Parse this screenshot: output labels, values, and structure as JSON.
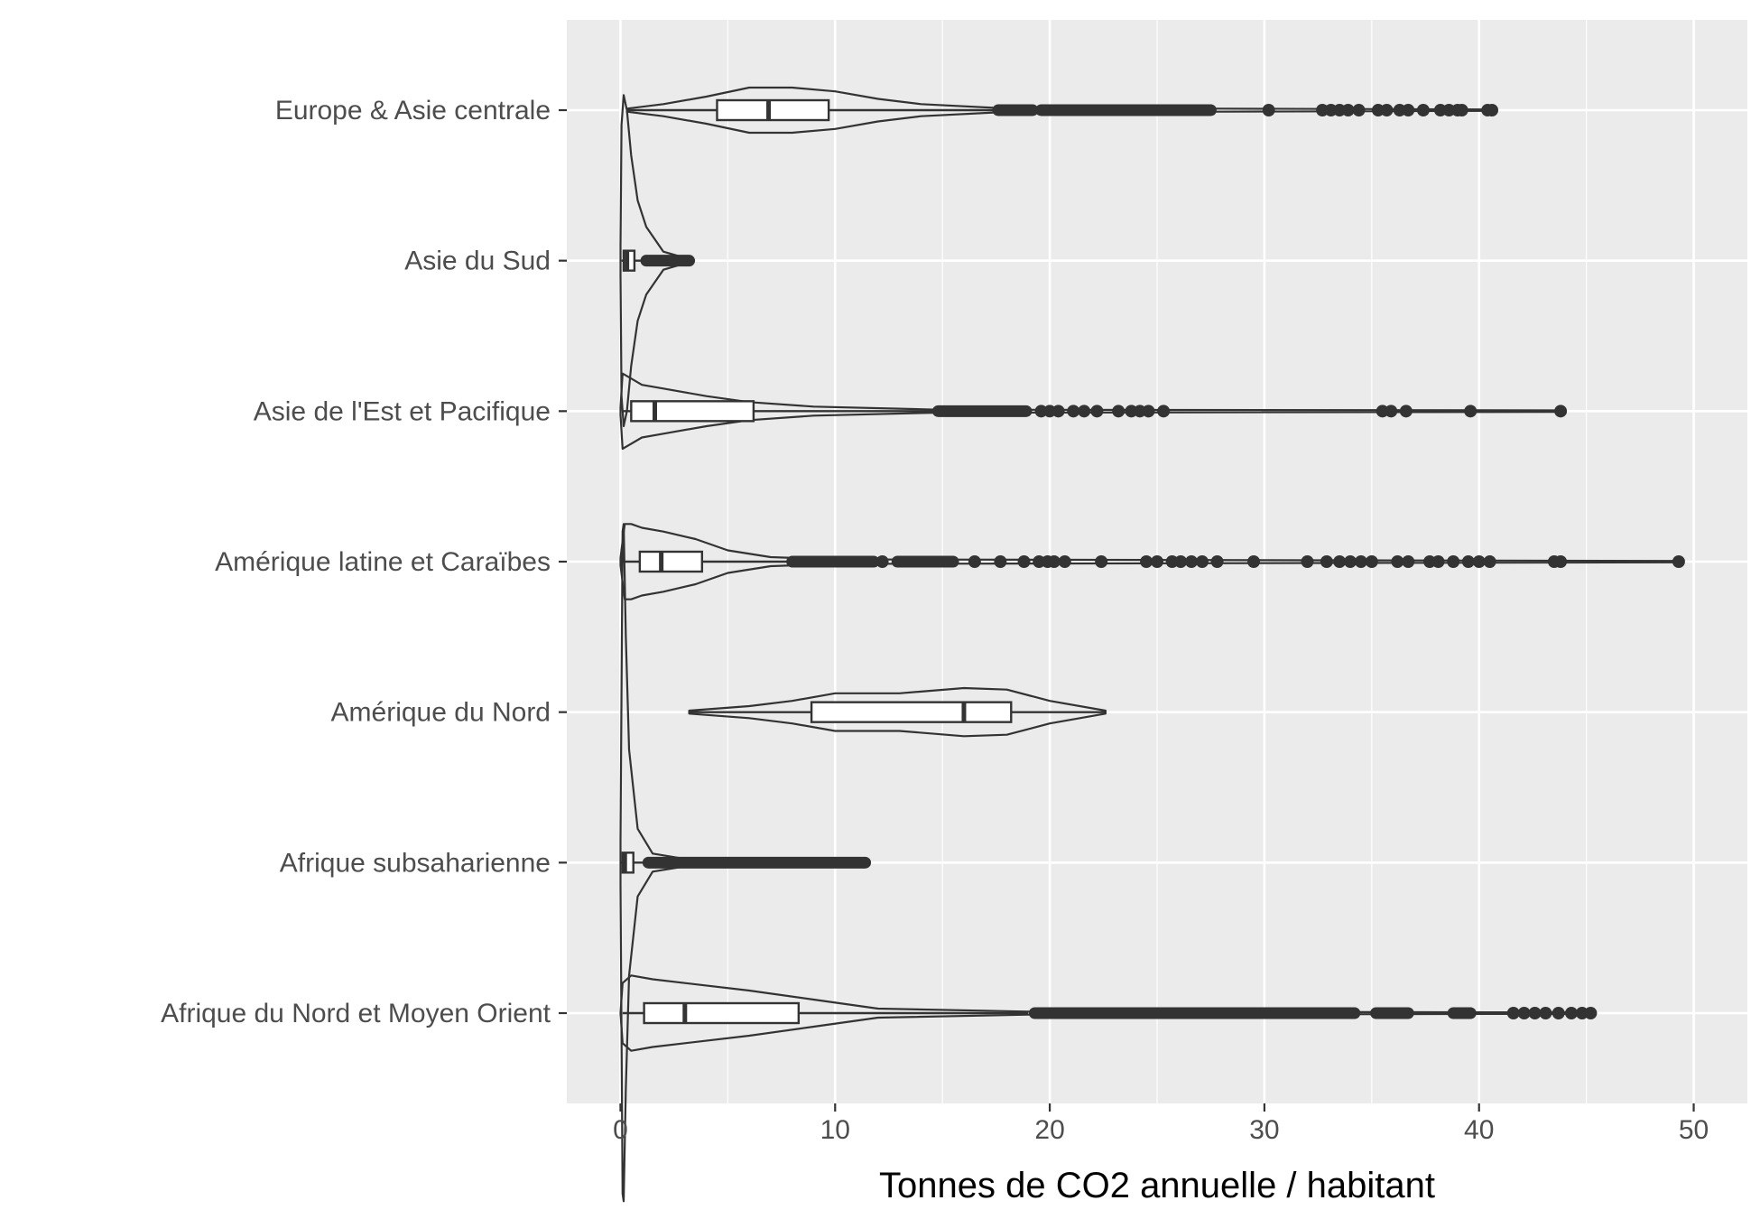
{
  "chart_data": {
    "type": "violin+boxplot",
    "xlabel": "Tonnes de CO2 annuelle / habitant",
    "ylabel": "",
    "xlim": [
      -2.5,
      52.5
    ],
    "xticks": [
      0,
      10,
      20,
      30,
      40,
      50
    ],
    "xtick_labels": [
      "0",
      "10",
      "20",
      "30",
      "40",
      "50"
    ],
    "grid": true,
    "colors": {
      "panel": "#ebebeb",
      "grid": "#ffffff",
      "ink": "#333333",
      "box_fill": "#ffffff"
    },
    "categories": [
      "Afrique du Nord et Moyen Orient",
      "Afrique subsaharienne",
      "Amérique du Nord",
      "Amérique latine et Caraïbes",
      "Asie de l'Est et Pacifique",
      "Asie du Sud",
      "Europe & Asie centrale"
    ],
    "series": [
      {
        "category": "Afrique du Nord et Moyen Orient",
        "min": 0.1,
        "q1": 1.1,
        "median": 3.0,
        "q3": 8.3,
        "whisker_high": 19.0,
        "max": 45.2,
        "violin": [
          [
            0.0,
            0.0
          ],
          [
            0.1,
            0.4
          ],
          [
            0.5,
            0.5
          ],
          [
            1.5,
            0.45
          ],
          [
            3.0,
            0.4
          ],
          [
            6.0,
            0.3
          ],
          [
            9.0,
            0.18
          ],
          [
            12.0,
            0.06
          ],
          [
            19.0,
            0.02
          ],
          [
            45.2,
            0.01
          ]
        ],
        "outlier_ranges": [
          [
            19.3,
            34.2
          ],
          [
            35.2,
            36.7
          ],
          [
            38.8,
            39.6
          ]
        ],
        "outliers": [
          41.6,
          42.1,
          42.6,
          43.1,
          43.7,
          44.3,
          44.8,
          45.2
        ]
      },
      {
        "category": "Afrique subsaharienne",
        "min": 0.0,
        "q1": 0.1,
        "median": 0.2,
        "q3": 0.6,
        "whisker_high": 1.3,
        "max": 11.4,
        "violin": [
          [
            0.0,
            0.3
          ],
          [
            0.1,
            4.4
          ],
          [
            0.15,
            4.5
          ],
          [
            0.25,
            3.0
          ],
          [
            0.4,
            1.5
          ],
          [
            0.8,
            0.45
          ],
          [
            1.5,
            0.12
          ],
          [
            3.0,
            0.05
          ],
          [
            11.4,
            0.02
          ]
        ],
        "outlier_ranges": [
          [
            1.3,
            11.4
          ]
        ],
        "outliers": []
      },
      {
        "category": "Amérique du Nord",
        "min": 3.2,
        "q1": 8.9,
        "median": 16.0,
        "q3": 18.2,
        "whisker_high": 22.6,
        "max": 22.6,
        "violin": [
          [
            3.2,
            0.02
          ],
          [
            6.0,
            0.08
          ],
          [
            8.0,
            0.15
          ],
          [
            10.0,
            0.25
          ],
          [
            13.0,
            0.25
          ],
          [
            16.0,
            0.32
          ],
          [
            18.0,
            0.3
          ],
          [
            20.0,
            0.15
          ],
          [
            22.6,
            0.02
          ]
        ],
        "outlier_ranges": [],
        "outliers": []
      },
      {
        "category": "Amérique latine et Caraïbes",
        "min": 0.1,
        "q1": 0.9,
        "median": 1.9,
        "q3": 3.8,
        "whisker_high": 8.0,
        "max": 49.3,
        "violin": [
          [
            0.0,
            0.05
          ],
          [
            0.2,
            0.5
          ],
          [
            0.5,
            0.5
          ],
          [
            1.0,
            0.45
          ],
          [
            2.0,
            0.4
          ],
          [
            3.5,
            0.3
          ],
          [
            5.0,
            0.15
          ],
          [
            7.0,
            0.06
          ],
          [
            10.0,
            0.03
          ],
          [
            49.3,
            0.01
          ]
        ],
        "outlier_ranges": [
          [
            8.0,
            11.8
          ],
          [
            12.9,
            15.5
          ]
        ],
        "outliers": [
          12.2,
          16.5,
          17.7,
          18.8,
          19.5,
          19.9,
          20.2,
          20.7,
          22.4,
          24.5,
          25.0,
          25.7,
          26.1,
          26.6,
          27.1,
          27.8,
          29.5,
          32.0,
          32.9,
          33.5,
          34.0,
          34.5,
          35.0,
          36.2,
          36.7,
          37.7,
          38.1,
          38.8,
          39.5,
          40.0,
          40.5,
          43.5,
          43.8,
          49.3
        ]
      },
      {
        "category": "Asie de l'Est et Pacifique",
        "min": 0.1,
        "q1": 0.5,
        "median": 1.6,
        "q3": 6.2,
        "whisker_high": 14.8,
        "max": 43.8,
        "violin": [
          [
            0.0,
            0.05
          ],
          [
            0.1,
            0.5
          ],
          [
            0.4,
            0.45
          ],
          [
            1.0,
            0.35
          ],
          [
            2.0,
            0.3
          ],
          [
            4.0,
            0.2
          ],
          [
            6.0,
            0.12
          ],
          [
            9.0,
            0.06
          ],
          [
            14.8,
            0.02
          ],
          [
            43.8,
            0.01
          ]
        ],
        "outlier_ranges": [
          [
            14.8,
            18.9
          ]
        ],
        "outliers": [
          19.6,
          20.0,
          20.4,
          21.1,
          21.6,
          22.2,
          23.2,
          23.8,
          24.2,
          24.6,
          25.3,
          35.5,
          35.9,
          36.6,
          39.6,
          43.8
        ]
      },
      {
        "category": "Asie du Sud",
        "min": 0.05,
        "q1": 0.15,
        "median": 0.3,
        "q3": 0.65,
        "whisker_high": 1.2,
        "max": 3.2,
        "violin": [
          [
            0.0,
            0.2
          ],
          [
            0.05,
            1.8
          ],
          [
            0.15,
            2.2
          ],
          [
            0.3,
            2.0
          ],
          [
            0.5,
            1.4
          ],
          [
            0.8,
            0.8
          ],
          [
            1.2,
            0.45
          ],
          [
            2.0,
            0.12
          ],
          [
            3.2,
            0.02
          ]
        ],
        "outlier_ranges": [
          [
            1.2,
            3.2
          ]
        ],
        "outliers": []
      },
      {
        "category": "Europe & Asie centrale",
        "min": 0.3,
        "q1": 4.5,
        "median": 6.9,
        "q3": 9.7,
        "whisker_high": 17.5,
        "max": 40.6,
        "violin": [
          [
            0.3,
            0.02
          ],
          [
            2.0,
            0.08
          ],
          [
            4.0,
            0.18
          ],
          [
            6.0,
            0.3
          ],
          [
            8.0,
            0.3
          ],
          [
            10.0,
            0.25
          ],
          [
            12.0,
            0.15
          ],
          [
            14.0,
            0.08
          ],
          [
            17.5,
            0.03
          ],
          [
            27.5,
            0.02
          ],
          [
            40.6,
            0.01
          ]
        ],
        "outlier_ranges": [
          [
            17.6,
            19.2
          ],
          [
            19.6,
            27.5
          ]
        ],
        "outliers": [
          30.2,
          32.7,
          33.1,
          33.5,
          33.9,
          34.4,
          35.3,
          35.7,
          36.3,
          36.7,
          37.4,
          38.2,
          38.6,
          39.0,
          39.2,
          40.4,
          40.6
        ]
      }
    ]
  }
}
